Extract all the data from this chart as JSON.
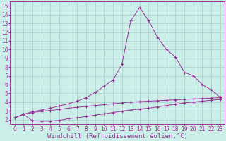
{
  "background_color": "#cceee8",
  "grid_color": "#aacccc",
  "line_color": "#993399",
  "marker": "+",
  "xlabel": "Windchill (Refroidissement éolien,°C)",
  "xlabel_fontsize": 6.5,
  "xlim": [
    -0.5,
    23.5
  ],
  "ylim": [
    1.5,
    15.5
  ],
  "yticks": [
    2,
    3,
    4,
    5,
    6,
    7,
    8,
    9,
    10,
    11,
    12,
    13,
    14,
    15
  ],
  "xticks": [
    0,
    1,
    2,
    3,
    4,
    5,
    6,
    7,
    8,
    9,
    10,
    11,
    12,
    13,
    14,
    15,
    16,
    17,
    18,
    19,
    20,
    21,
    22,
    23
  ],
  "tick_fontsize": 5.5,
  "series": [
    {
      "x": [
        0,
        1,
        2,
        3,
        4,
        5,
        6,
        7,
        8,
        9,
        10,
        11,
        12,
        13,
        14,
        15,
        16,
        17,
        18,
        19,
        20,
        21,
        22,
        23
      ],
      "y": [
        2.2,
        2.6,
        2.8,
        2.95,
        3.05,
        3.15,
        3.3,
        3.4,
        3.5,
        3.6,
        3.7,
        3.8,
        3.9,
        4.0,
        4.05,
        4.1,
        4.15,
        4.2,
        4.25,
        4.3,
        4.35,
        4.4,
        4.45,
        4.5
      ]
    },
    {
      "x": [
        0,
        1,
        2,
        3,
        4,
        5,
        6,
        7,
        8,
        9,
        10,
        11,
        12,
        13,
        14,
        15,
        16,
        17,
        18,
        19,
        20,
        21,
        22,
        23
      ],
      "y": [
        2.2,
        2.6,
        1.85,
        1.82,
        1.82,
        1.9,
        2.1,
        2.2,
        2.35,
        2.5,
        2.65,
        2.8,
        2.95,
        3.1,
        3.2,
        3.3,
        3.45,
        3.6,
        3.75,
        3.9,
        4.0,
        4.1,
        4.2,
        4.3
      ]
    },
    {
      "x": [
        0,
        1,
        2,
        3,
        4,
        5,
        6,
        7,
        8,
        9,
        10,
        11,
        12,
        13,
        14,
        15,
        16,
        17,
        18,
        19,
        20,
        21,
        22,
        23
      ],
      "y": [
        2.2,
        2.6,
        2.9,
        3.1,
        3.3,
        3.55,
        3.8,
        4.1,
        4.5,
        5.1,
        5.8,
        6.5,
        8.3,
        13.3,
        14.8,
        13.3,
        11.4,
        10.0,
        9.15,
        7.4,
        7.0,
        6.0,
        5.4,
        4.55
      ]
    }
  ]
}
